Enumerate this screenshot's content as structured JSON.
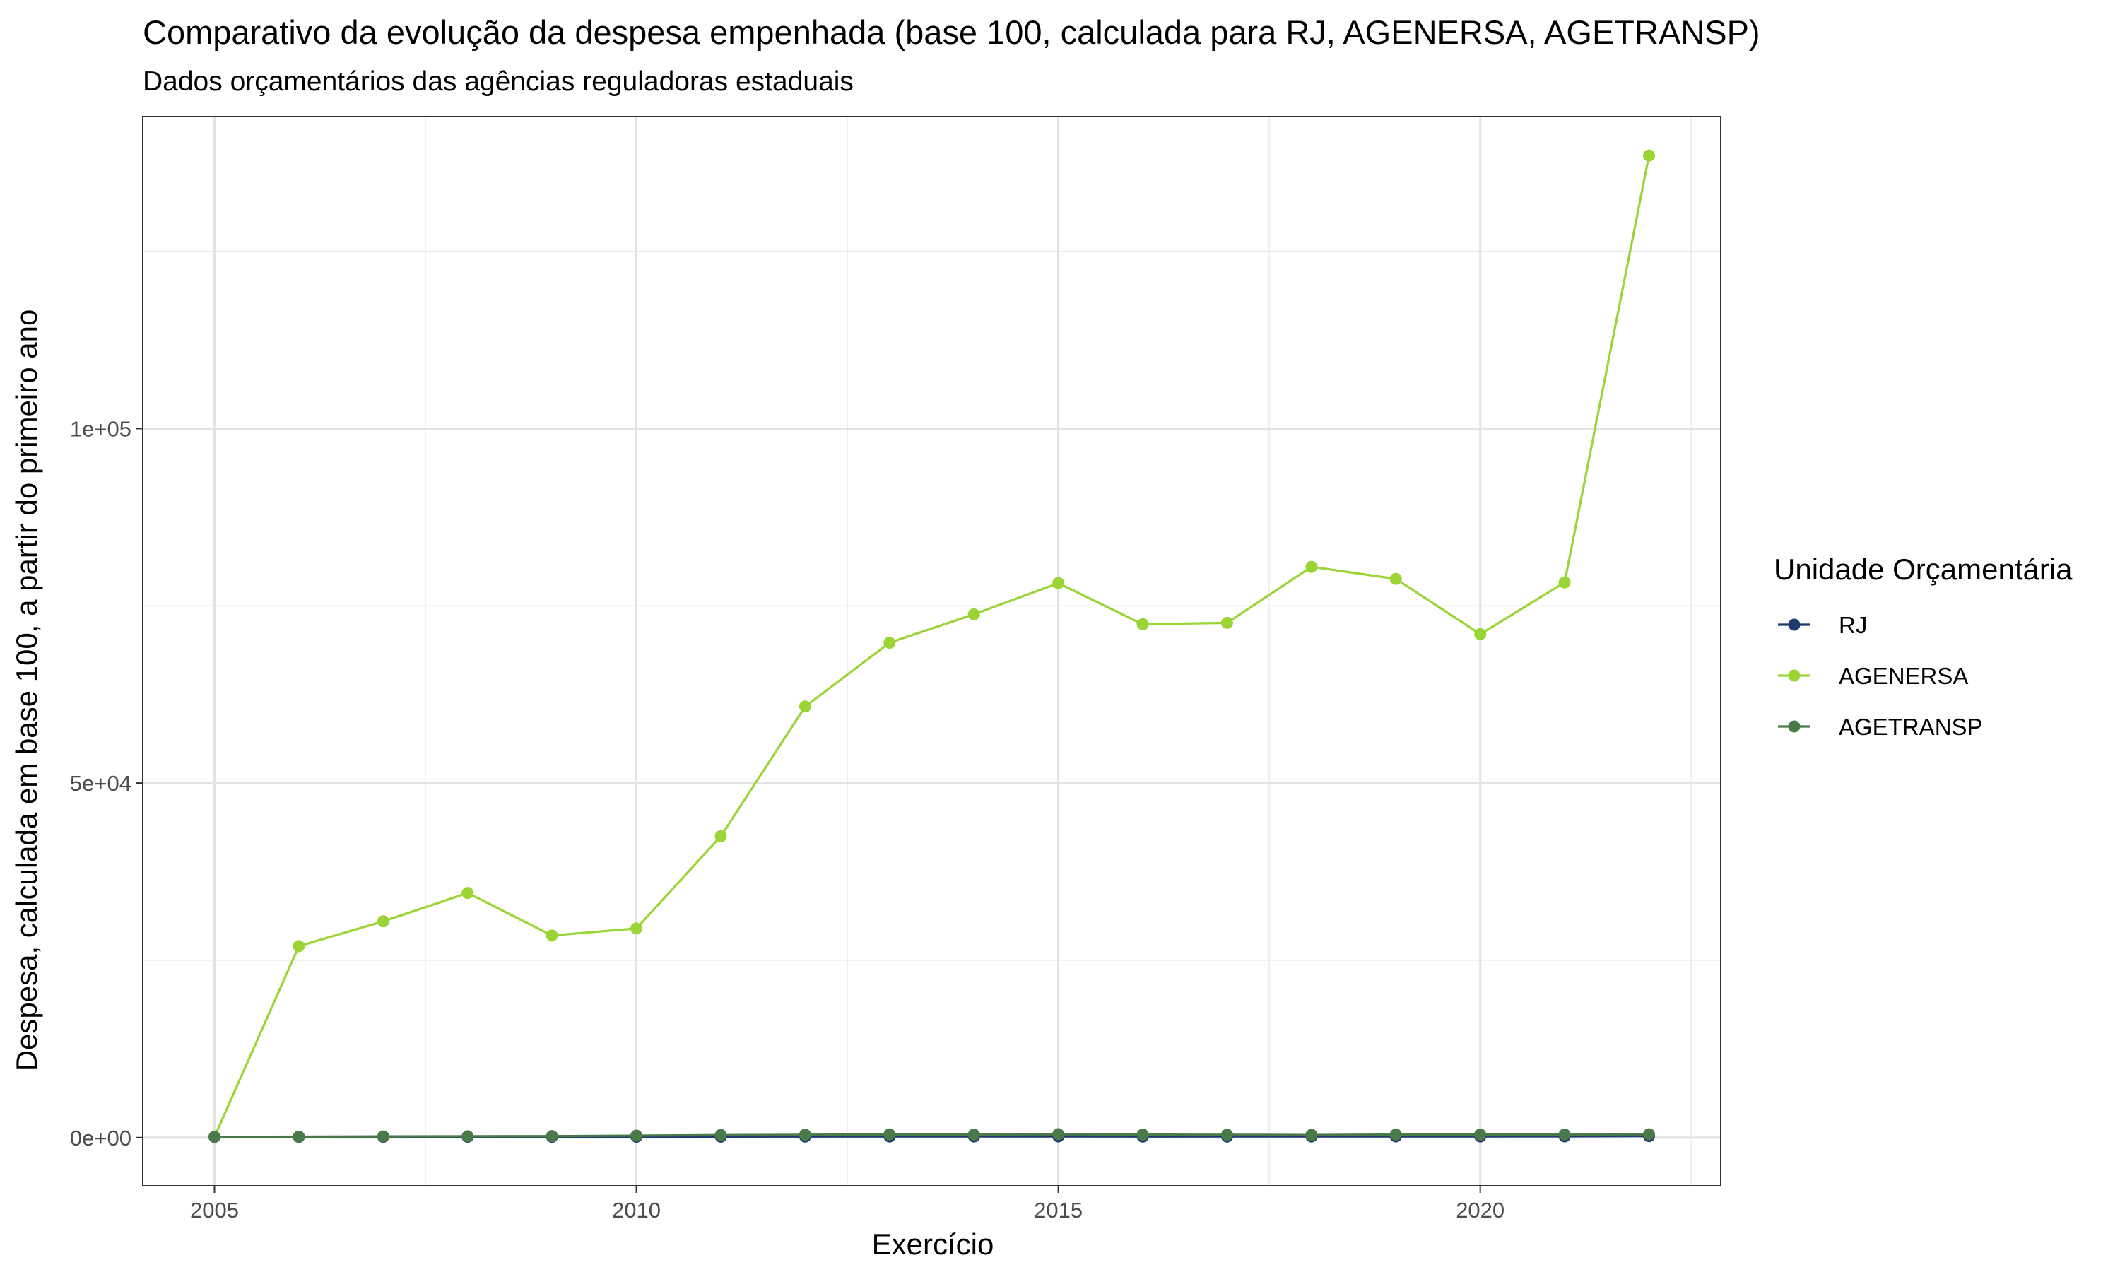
{
  "chart_data": {
    "type": "line",
    "title": "Comparativo da evolução da despesa empenhada (base 100, calculada para RJ, AGENERSA, AGETRANSP)",
    "subtitle": "Dados orçamentários das agências reguladoras estaduais",
    "xlabel": "Exercício",
    "ylabel": "Despesa, calculada em base 100, a partir do primeiro ano",
    "x": [
      2005,
      2006,
      2007,
      2008,
      2009,
      2010,
      2011,
      2012,
      2013,
      2014,
      2015,
      2016,
      2017,
      2018,
      2019,
      2020,
      2021,
      2022
    ],
    "xlim": [
      2004.15,
      2022.85
    ],
    "ylim": [
      -6800,
      144000
    ],
    "x_ticks": [
      2005,
      2010,
      2015,
      2020
    ],
    "x_tick_labels": [
      "2005",
      "2010",
      "2015",
      "2020"
    ],
    "y_ticks": [
      0,
      50000,
      100000
    ],
    "y_tick_labels": [
      "0e+00",
      "5e+04",
      "1e+05"
    ],
    "grid": true,
    "legend": {
      "title": "Unidade Orçamentária",
      "position": "right"
    },
    "series": [
      {
        "name": "RJ",
        "color": "#1f3a6e",
        "values": [
          100,
          105,
          112,
          120,
          118,
          125,
          140,
          150,
          160,
          165,
          170,
          150,
          155,
          160,
          170,
          165,
          175,
          210
        ]
      },
      {
        "name": "AGENERSA",
        "color": "#9ad435",
        "values": [
          100,
          27000,
          30500,
          34500,
          28500,
          29500,
          42500,
          60800,
          69800,
          73800,
          78200,
          72400,
          72600,
          80500,
          78800,
          71000,
          78300,
          138500
        ]
      },
      {
        "name": "AGETRANSP",
        "color": "#4a7a4a",
        "values": [
          100,
          130,
          170,
          190,
          210,
          280,
          360,
          400,
          450,
          430,
          470,
          420,
          400,
          370,
          430,
          420,
          440,
          460
        ]
      }
    ]
  }
}
